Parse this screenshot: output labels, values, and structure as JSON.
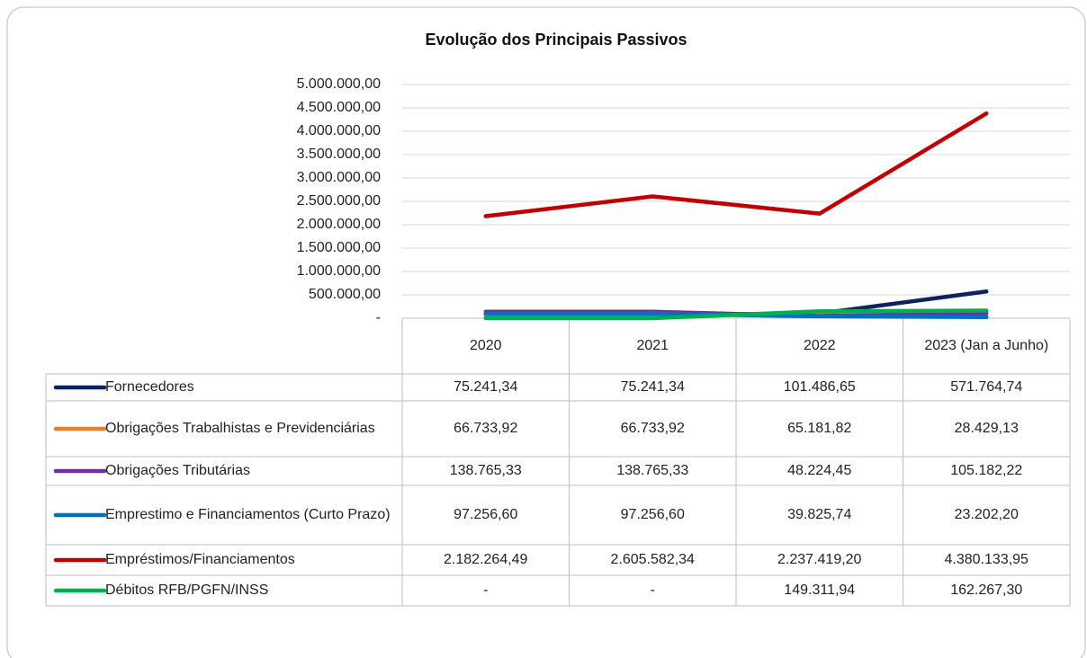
{
  "chart_data": {
    "type": "line",
    "title": "Evolução dos Principais Passivos",
    "categories": [
      "2020",
      "2021",
      "2022",
      "2023 (Jan a Junho)"
    ],
    "ylim": [
      0,
      5000000
    ],
    "yticks": [
      {
        "value": 0,
        "label": "-"
      },
      {
        "value": 500000,
        "label": "500.000,00"
      },
      {
        "value": 1000000,
        "label": "1.000.000,00"
      },
      {
        "value": 1500000,
        "label": "1.500.000,00"
      },
      {
        "value": 2000000,
        "label": "2.000.000,00"
      },
      {
        "value": 2500000,
        "label": "2.500.000,00"
      },
      {
        "value": 3000000,
        "label": "3.000.000,00"
      },
      {
        "value": 3500000,
        "label": "3.500.000,00"
      },
      {
        "value": 4000000,
        "label": "4.000.000,00"
      },
      {
        "value": 4500000,
        "label": "4.500.000,00"
      },
      {
        "value": 5000000,
        "label": "5.000.000,00"
      }
    ],
    "grid": true,
    "series": [
      {
        "name": "Fornecedores",
        "color": "#0e2160",
        "values": [
          75241.34,
          75241.34,
          101486.65,
          571764.74
        ],
        "value_labels": [
          "75.241,34",
          "75.241,34",
          "101.486,65",
          "571.764,74"
        ]
      },
      {
        "name": "Obrigações Trabalhistas e Previdenciárias",
        "color": "#ed7d31",
        "values": [
          66733.92,
          66733.92,
          65181.82,
          28429.13
        ],
        "value_labels": [
          "66.733,92",
          "66.733,92",
          "65.181,82",
          "28.429,13"
        ]
      },
      {
        "name": "Obrigações Tributárias",
        "color": "#7030a0",
        "values": [
          138765.33,
          138765.33,
          48224.45,
          105182.22
        ],
        "value_labels": [
          "138.765,33",
          "138.765,33",
          "48.224,45",
          "105.182,22"
        ]
      },
      {
        "name": "Emprestimo e Financiamentos (Curto Prazo)",
        "color": "#0070c0",
        "values": [
          97256.6,
          97256.6,
          39825.74,
          23202.2
        ],
        "value_labels": [
          "97.256,60",
          "97.256,60",
          "39.825,74",
          "23.202,20"
        ]
      },
      {
        "name": "Empréstimos/Financiamentos",
        "color": "#c00000",
        "values": [
          2182264.49,
          2605582.34,
          2237419.2,
          4380133.95
        ],
        "value_labels": [
          "2.182.264,49",
          "2.605.582,34",
          "2.237.419,20",
          "4.380.133,95"
        ]
      },
      {
        "name": "Débitos RFB/PGFN/INSS",
        "color": "#00b050",
        "values": [
          0,
          0,
          149311.94,
          162267.3
        ],
        "value_labels": [
          "-",
          "-",
          "149.311,94",
          "162.267,30"
        ]
      }
    ]
  }
}
